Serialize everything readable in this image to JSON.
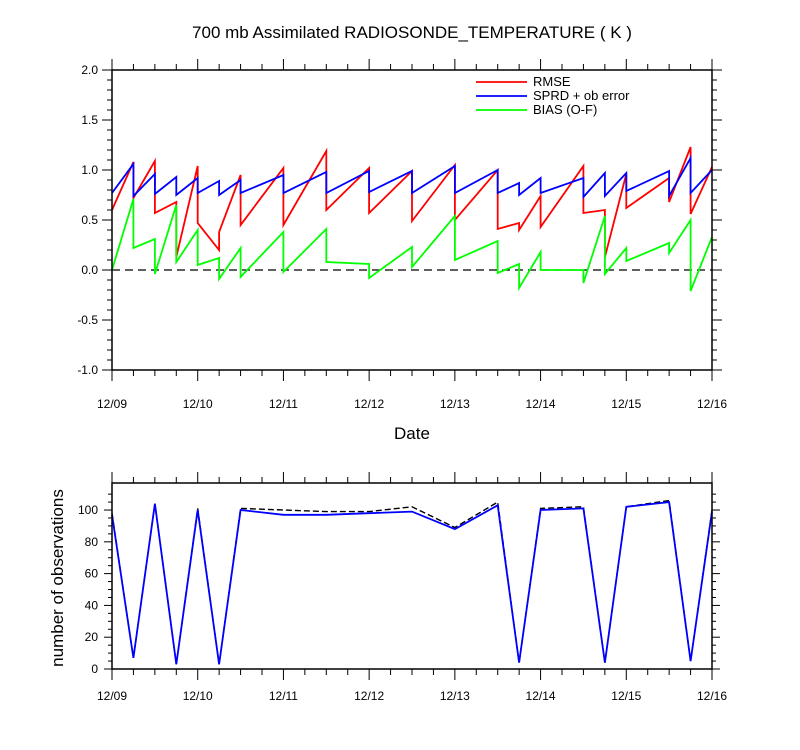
{
  "page": {
    "title": "700 mb Assimilated RADIOSONDE_TEMPERATURE ( K )"
  },
  "chart_data": [
    {
      "type": "line",
      "title": "700 mb Assimilated RADIOSONDE_TEMPERATURE ( K )",
      "xlabel": "Date",
      "ylabel": "",
      "ylim": [
        -1.0,
        2.0
      ],
      "xlim": [
        0,
        7
      ],
      "x_tick_labels": [
        "12/09",
        "12/10",
        "12/11",
        "12/12",
        "12/13",
        "12/14",
        "12/15",
        "12/16"
      ],
      "y_tick_labels": [
        "-1.0",
        "-0.5",
        "0.0",
        "0.5",
        "1.0",
        "1.5",
        "2.0"
      ],
      "legend": [
        "RMSE",
        "SPRD + ob error",
        "BIAS (O-F)"
      ],
      "legend_position": "top-right",
      "zero_line": "dashed",
      "series": [
        {
          "name": "RMSE",
          "color": "#ff0000",
          "x": [
            0,
            0.25,
            0.25,
            0.5,
            0.5,
            0.75,
            0.75,
            1.0,
            1.0,
            1.25,
            1.25,
            1.5,
            1.5,
            2.0,
            2.0,
            2.5,
            2.5,
            3.0,
            3.0,
            3.5,
            3.5,
            4.0,
            4.0,
            4.5,
            4.5,
            4.75,
            4.75,
            5.0,
            5.0,
            5.5,
            5.5,
            5.75,
            5.75,
            6.0,
            6.0,
            6.5,
            6.5,
            6.75,
            6.75,
            7.0
          ],
          "values": [
            0.6,
            1.08,
            0.72,
            1.09,
            0.57,
            0.68,
            0.13,
            1.04,
            0.47,
            0.2,
            0.38,
            0.95,
            0.45,
            1.02,
            0.45,
            1.19,
            0.6,
            1.02,
            0.57,
            0.99,
            0.49,
            1.05,
            0.5,
            1.0,
            0.41,
            0.47,
            0.4,
            0.74,
            0.43,
            1.04,
            0.57,
            0.6,
            0.13,
            0.96,
            0.62,
            0.92,
            0.68,
            1.23,
            0.56,
            1.03
          ]
        },
        {
          "name": "SPRD + ob error",
          "color": "#0000ff",
          "x": [
            0,
            0.25,
            0.25,
            0.5,
            0.5,
            0.75,
            0.75,
            1.0,
            1.0,
            1.25,
            1.25,
            1.5,
            1.5,
            2.0,
            2.0,
            2.5,
            2.5,
            3.0,
            3.0,
            3.5,
            3.5,
            4.0,
            4.0,
            4.5,
            4.5,
            4.75,
            4.75,
            5.0,
            5.0,
            5.5,
            5.5,
            5.75,
            5.75,
            6.0,
            6.0,
            6.5,
            6.5,
            6.75,
            6.75,
            7.0
          ],
          "values": [
            0.77,
            1.06,
            0.74,
            0.96,
            0.76,
            0.93,
            0.75,
            0.92,
            0.77,
            0.89,
            0.75,
            0.9,
            0.77,
            0.95,
            0.77,
            0.98,
            0.77,
            0.99,
            0.78,
            0.99,
            0.77,
            1.04,
            0.77,
            1.0,
            0.77,
            0.87,
            0.75,
            0.92,
            0.77,
            0.92,
            0.73,
            0.97,
            0.74,
            0.97,
            0.79,
            0.99,
            0.74,
            1.12,
            0.77,
            1.0
          ]
        },
        {
          "name": "BIAS (O-F)",
          "color": "#00ff00",
          "x": [
            0,
            0.25,
            0.25,
            0.5,
            0.5,
            0.75,
            0.75,
            1.0,
            1.0,
            1.25,
            1.25,
            1.5,
            1.5,
            2.0,
            2.0,
            2.5,
            2.5,
            3.0,
            3.0,
            3.5,
            3.5,
            4.0,
            4.0,
            4.5,
            4.5,
            4.75,
            4.75,
            5.0,
            5.0,
            5.5,
            5.5,
            5.75,
            5.75,
            6.0,
            6.0,
            6.5,
            6.5,
            6.75,
            6.75,
            7.0
          ],
          "values": [
            0.0,
            0.71,
            0.22,
            0.31,
            -0.04,
            0.65,
            0.08,
            0.4,
            0.05,
            0.12,
            -0.09,
            0.22,
            -0.07,
            0.38,
            -0.02,
            0.41,
            0.08,
            0.06,
            -0.08,
            0.23,
            0.03,
            0.54,
            0.1,
            0.29,
            -0.03,
            0.06,
            -0.18,
            0.18,
            0.0,
            0.0,
            -0.13,
            0.54,
            -0.04,
            0.22,
            0.09,
            0.27,
            0.17,
            0.5,
            -0.21,
            0.33
          ]
        }
      ]
    },
    {
      "type": "line",
      "title": "",
      "xlabel": "",
      "ylabel": "number of observations",
      "ylim": [
        0,
        117
      ],
      "xlim": [
        0,
        7
      ],
      "x_tick_labels": [
        "12/09",
        "12/10",
        "12/11",
        "12/12",
        "12/13",
        "12/14",
        "12/15",
        "12/16"
      ],
      "y_tick_labels": [
        "0",
        "20",
        "40",
        "60",
        "80",
        "100"
      ],
      "series": [
        {
          "name": "observations (dashed)",
          "color": "#000000",
          "x": [
            0,
            0.25,
            0.5,
            0.75,
            1.0,
            1.25,
            1.5,
            2.0,
            2.5,
            3.0,
            3.5,
            4.0,
            4.5,
            4.75,
            5.0,
            5.5,
            5.75,
            6.0,
            6.5,
            6.75,
            7.0
          ],
          "values": [
            98,
            7,
            104,
            3,
            101,
            3,
            101,
            100,
            99,
            99,
            102,
            89,
            105,
            4,
            101,
            102,
            4,
            102,
            106,
            5,
            100
          ]
        },
        {
          "name": "observations (solid)",
          "color": "#0000ff",
          "x": [
            0,
            0.25,
            0.5,
            0.75,
            1.0,
            1.25,
            1.5,
            2.0,
            2.5,
            3.0,
            3.5,
            4.0,
            4.5,
            4.75,
            5.0,
            5.5,
            5.75,
            6.0,
            6.5,
            6.75,
            7.0
          ],
          "values": [
            97,
            7,
            104,
            3,
            100,
            3,
            100,
            97,
            97,
            98,
            99,
            88,
            103,
            4,
            100,
            101,
            4,
            102,
            105,
            5,
            99
          ]
        }
      ]
    }
  ]
}
